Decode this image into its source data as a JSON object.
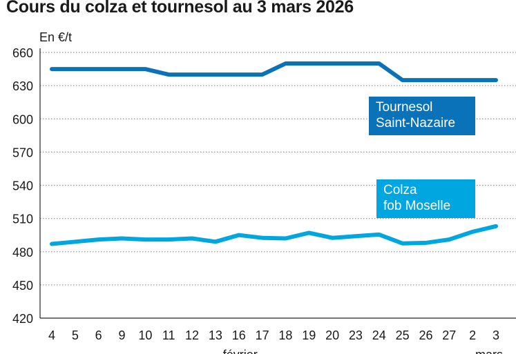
{
  "chart_data": {
    "type": "line",
    "title": "Cours du colza et tournesol au 3 mars 2026",
    "ylabel": "En €/t",
    "ylim": [
      420,
      660
    ],
    "yticks": [
      420,
      450,
      480,
      510,
      540,
      570,
      600,
      630,
      660
    ],
    "categories": [
      "4",
      "5",
      "6",
      "9",
      "10",
      "11",
      "12",
      "13",
      "16",
      "17",
      "18",
      "19",
      "20",
      "23",
      "24",
      "25",
      "26",
      "27",
      "2",
      "3"
    ],
    "month_labels": [
      {
        "label": "février",
        "at": "16"
      },
      {
        "label": "mars",
        "at": "3"
      }
    ],
    "grid": true,
    "series": [
      {
        "name": "Tournesol Saint-Nazaire",
        "label_lines": [
          "Tournesol",
          "Saint-Nazaire"
        ],
        "color": "#0a72b8",
        "values": [
          645,
          645,
          645,
          645,
          645,
          640,
          640,
          640,
          640,
          640,
          650,
          650,
          650,
          650,
          650,
          635,
          635,
          635,
          635,
          635
        ]
      },
      {
        "name": "Colza fob Moselle",
        "label_lines": [
          "Colza",
          "fob Moselle"
        ],
        "color": "#00a6e0",
        "values": [
          487,
          489,
          491,
          492,
          491,
          491,
          492,
          489,
          495,
          492.5,
          492,
          497,
          492.5,
          494,
          495.5,
          487.5,
          488,
          491,
          498,
          503
        ]
      }
    ]
  }
}
